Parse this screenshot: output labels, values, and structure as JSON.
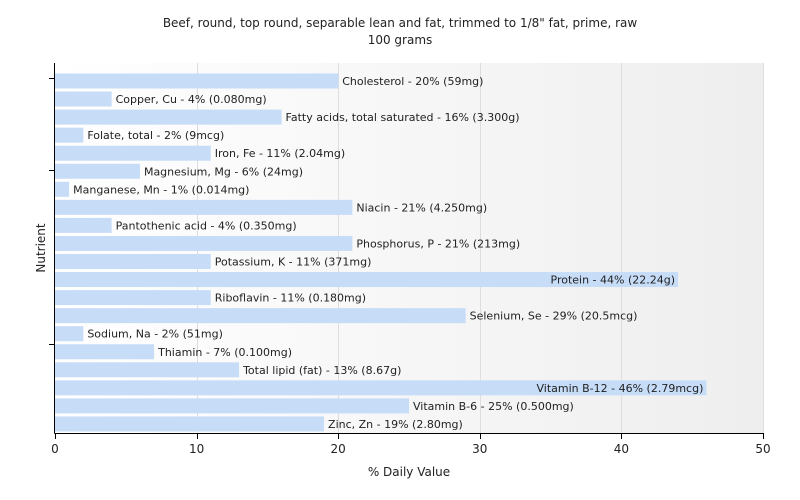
{
  "chart_data": {
    "type": "bar",
    "orientation": "horizontal",
    "title": "Beef, round, top round, separable lean and fat, trimmed to 1/8\" fat, prime, raw",
    "subtitle": "100 grams",
    "xlabel": "% Daily Value",
    "ylabel": "Nutrient",
    "xlim": [
      0,
      50
    ],
    "xticks": [
      0,
      10,
      20,
      30,
      40,
      50
    ],
    "grid": true,
    "bar_color": "#c6dcf7",
    "categories": [
      "Cholesterol",
      "Copper, Cu",
      "Fatty acids, total saturated",
      "Folate, total",
      "Iron, Fe",
      "Magnesium, Mg",
      "Manganese, Mn",
      "Niacin",
      "Pantothenic acid",
      "Phosphorus, P",
      "Potassium, K",
      "Protein",
      "Riboflavin",
      "Selenium, Se",
      "Sodium, Na",
      "Thiamin",
      "Total lipid (fat)",
      "Vitamin B-12",
      "Vitamin B-6",
      "Zinc, Zn"
    ],
    "values": [
      20,
      4,
      16,
      2,
      11,
      6,
      1,
      21,
      4,
      21,
      11,
      44,
      11,
      29,
      2,
      7,
      13,
      46,
      25,
      19
    ],
    "labels": [
      "Cholesterol - 20% (59mg)",
      "Copper, Cu - 4% (0.080mg)",
      "Fatty acids, total saturated - 16% (3.300g)",
      "Folate, total - 2% (9mcg)",
      "Iron, Fe - 11% (2.04mg)",
      "Magnesium, Mg - 6% (24mg)",
      "Manganese, Mn - 1% (0.014mg)",
      "Niacin - 21% (4.250mg)",
      "Pantothenic acid - 4% (0.350mg)",
      "Phosphorus, P - 21% (213mg)",
      "Potassium, K - 11% (371mg)",
      "Protein - 44% (22.24g)",
      "Riboflavin - 11% (0.180mg)",
      "Selenium, Se - 29% (20.5mcg)",
      "Sodium, Na - 2% (51mg)",
      "Thiamin - 7% (0.100mg)",
      "Total lipid (fat) - 13% (8.67g)",
      "Vitamin B-12 - 46% (2.79mcg)",
      "Vitamin B-6 - 25% (0.500mg)",
      "Zinc, Zn - 19% (2.80mg)"
    ]
  }
}
